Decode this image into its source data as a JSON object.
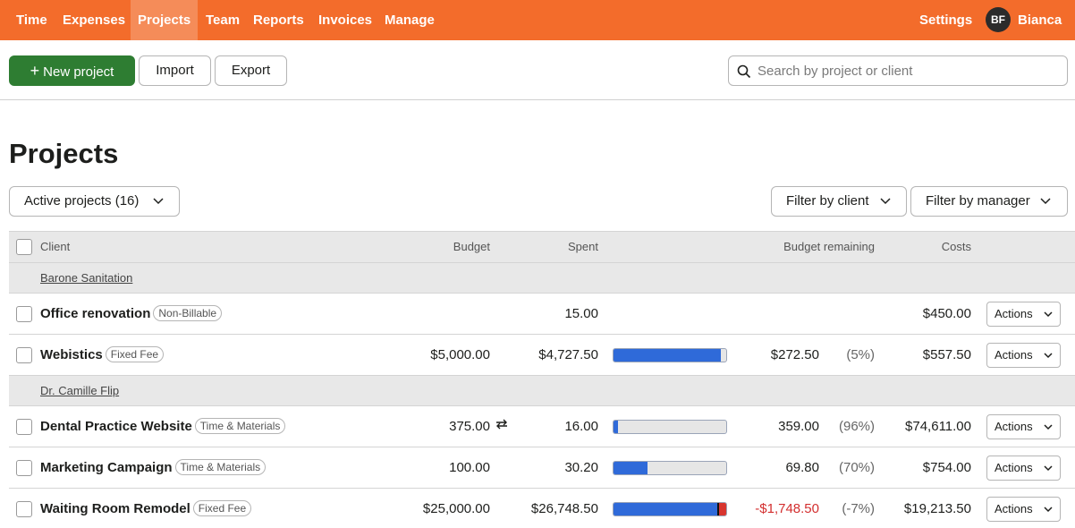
{
  "nav": {
    "items": [
      "Time",
      "Expenses",
      "Projects",
      "Team",
      "Reports",
      "Invoices",
      "Manage"
    ],
    "active": "Projects",
    "settings": "Settings",
    "user_initials": "BF",
    "user_name": "Bianca"
  },
  "toolbar": {
    "new_project": "New project",
    "import": "Import",
    "export": "Export",
    "search_placeholder": "Search by project or client"
  },
  "page_title": "Projects",
  "filters": {
    "status": "Active projects (16)",
    "client": "Filter by client",
    "manager": "Filter by manager"
  },
  "table": {
    "headers": {
      "client": "Client",
      "budget": "Budget",
      "spent": "Spent",
      "remaining": "Budget remaining",
      "costs": "Costs"
    },
    "groups": [
      {
        "client": "Barone Sanitation"
      },
      {
        "client": "Dr. Camille Flip"
      }
    ],
    "rows": [
      {
        "name": "Office renovation",
        "tag": "Non-Billable",
        "budget": "",
        "spent": "15.00",
        "remaining": "",
        "pct": "",
        "costs": "$450.00",
        "progress": null,
        "over": 0,
        "action": "Actions"
      },
      {
        "name": "Webistics",
        "tag": "Fixed Fee",
        "budget": "$5,000.00",
        "spent": "$4,727.50",
        "remaining": "$272.50",
        "pct": "(5%)",
        "costs": "$557.50",
        "progress": 0.95,
        "over": 0,
        "action": "Actions"
      },
      {
        "name": "Dental Practice Website",
        "tag": "Time & Materials",
        "budget": "375.00",
        "spent": "16.00",
        "remaining": "359.00",
        "pct": "(96%)",
        "costs": "$74,611.00",
        "progress": 0.04,
        "over": 0,
        "action": "Actions"
      },
      {
        "name": "Marketing Campaign",
        "tag": "Time & Materials",
        "budget": "100.00",
        "spent": "30.20",
        "remaining": "69.80",
        "pct": "(70%)",
        "costs": "$754.00",
        "progress": 0.3,
        "over": 0,
        "action": "Actions"
      },
      {
        "name": "Waiting Room Remodel",
        "tag": "Fixed Fee",
        "budget": "$25,000.00",
        "spent": "$26,748.50",
        "remaining": "-$1,748.50",
        "pct": "(-7%)",
        "costs": "$19,213.50",
        "progress": 0.93,
        "over": 0.07,
        "action": "Actions"
      }
    ]
  },
  "colors": {
    "brand": "#f36c2b",
    "primary_button": "#2e7d32",
    "progress": "#2f6ad9",
    "over_budget": "#d8352f"
  }
}
